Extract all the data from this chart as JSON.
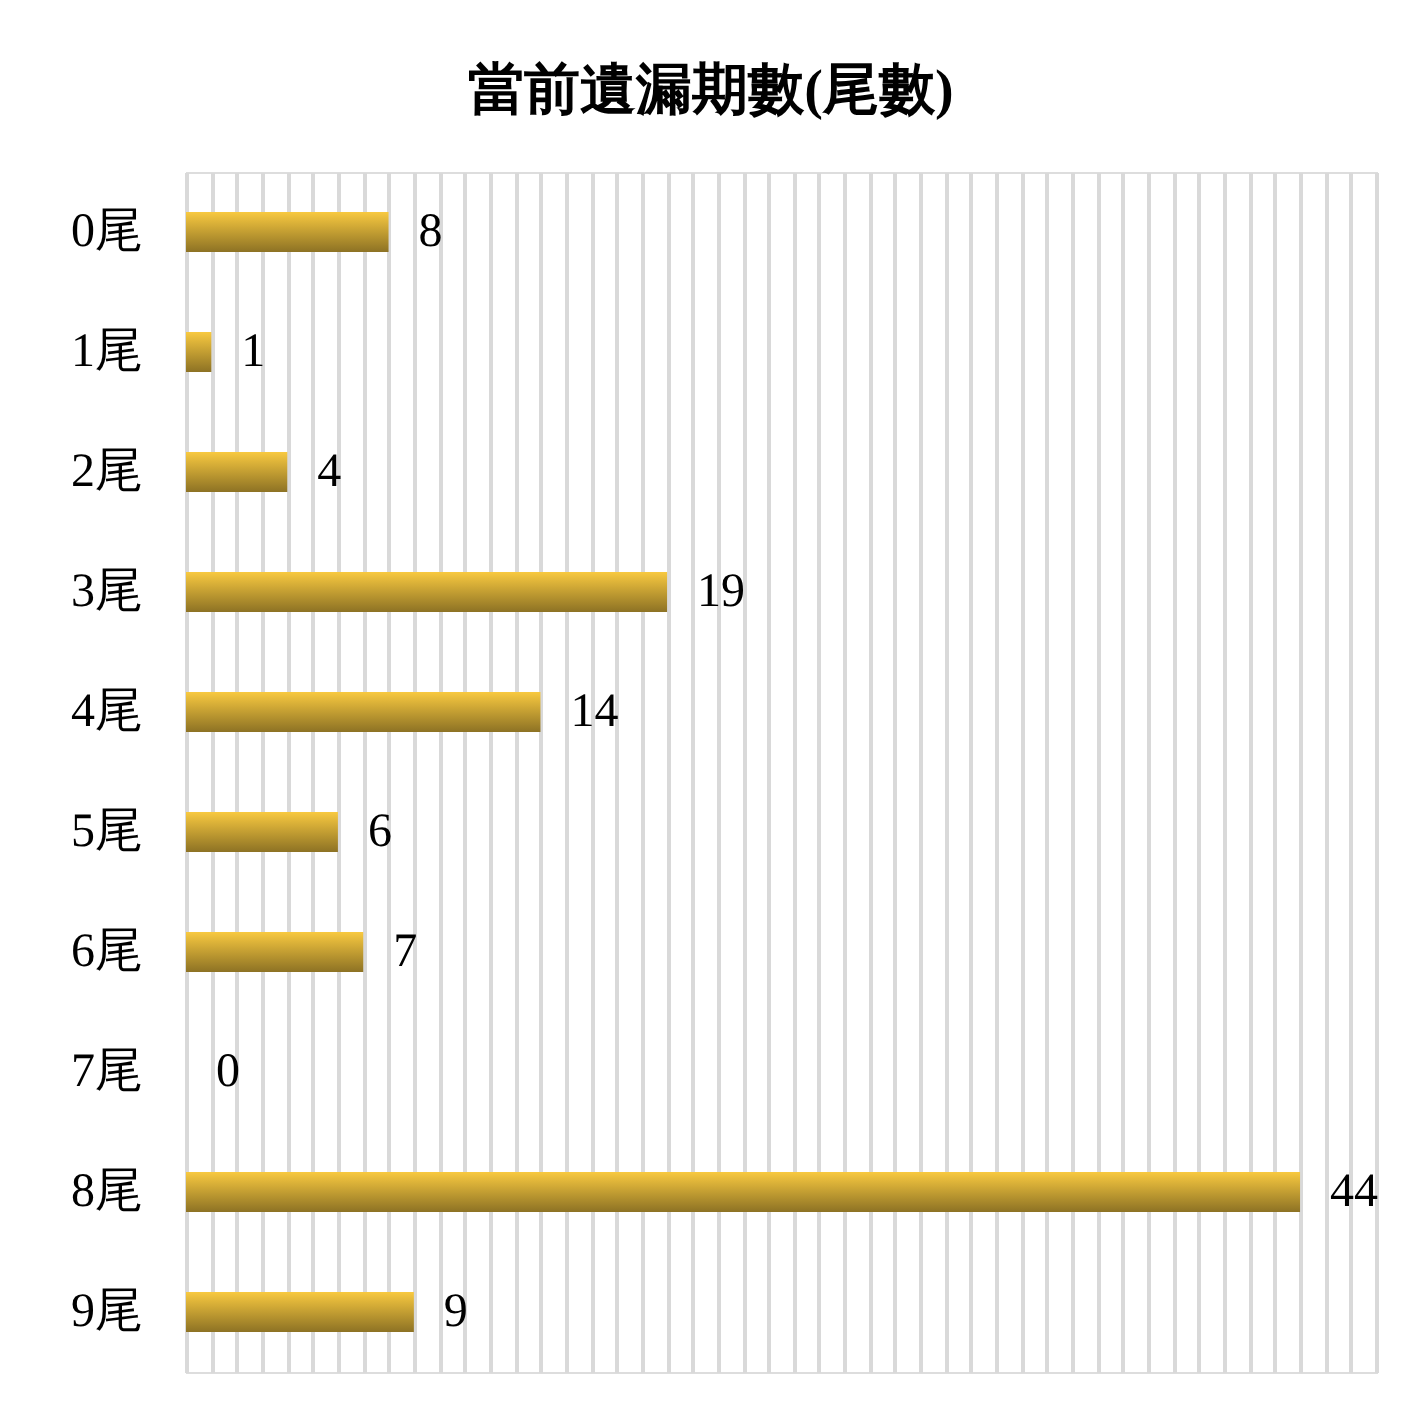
{
  "chart_data": {
    "type": "bar",
    "orientation": "horizontal",
    "title": "當前遺漏期數(尾數)",
    "categories": [
      "0尾",
      "1尾",
      "2尾",
      "3尾",
      "4尾",
      "5尾",
      "6尾",
      "7尾",
      "8尾",
      "9尾"
    ],
    "values": [
      8,
      1,
      4,
      19,
      14,
      6,
      7,
      0,
      44,
      9
    ],
    "color": "#f8c940",
    "xlim": [
      0,
      47
    ],
    "xticks": [
      {
        "value": 0,
        "label": null
      },
      {
        "value": 1,
        "label": null
      },
      {
        "value": 2,
        "label": null
      },
      {
        "value": 3,
        "label": null
      },
      {
        "value": 4,
        "label": null
      },
      {
        "value": 5,
        "label": null
      },
      {
        "value": 6,
        "label": null
      },
      {
        "value": 7,
        "label": null
      },
      {
        "value": 8,
        "label": null
      },
      {
        "value": 9,
        "label": null
      },
      {
        "value": 10,
        "label": null
      },
      {
        "value": 11,
        "label": null
      },
      {
        "value": 12,
        "label": null
      },
      {
        "value": 13,
        "label": null
      },
      {
        "value": 14,
        "label": null
      },
      {
        "value": 15,
        "label": null
      },
      {
        "value": 16,
        "label": null
      },
      {
        "value": 17,
        "label": null
      },
      {
        "value": 18,
        "label": null
      },
      {
        "value": 19,
        "label": null
      },
      {
        "value": 20,
        "label": null
      },
      {
        "value": 21,
        "label": null
      },
      {
        "value": 22,
        "label": null
      },
      {
        "value": 23,
        "label": null
      },
      {
        "value": 24,
        "label": null
      },
      {
        "value": 25,
        "label": null
      },
      {
        "value": 26,
        "label": null
      },
      {
        "value": 27,
        "label": null
      },
      {
        "value": 28,
        "label": null
      },
      {
        "value": 29,
        "label": null
      },
      {
        "value": 30,
        "label": null
      },
      {
        "value": 31,
        "label": null
      },
      {
        "value": 32,
        "label": null
      },
      {
        "value": 33,
        "label": null
      },
      {
        "value": 34,
        "label": null
      },
      {
        "value": 35,
        "label": null
      },
      {
        "value": 36,
        "label": null
      },
      {
        "value": 37,
        "label": null
      },
      {
        "value": 38,
        "label": null
      },
      {
        "value": 39,
        "label": null
      },
      {
        "value": 40,
        "label": null
      },
      {
        "value": 41,
        "label": null
      },
      {
        "value": 42,
        "label": null
      },
      {
        "value": 43,
        "label": null
      },
      {
        "value": 44,
        "label": null
      },
      {
        "value": 45,
        "label": null
      },
      {
        "value": 46,
        "label": null
      },
      {
        "value": 47,
        "label": null
      }
    ],
    "grid": "x",
    "tick_labels": "y",
    "data_labels": true
  }
}
